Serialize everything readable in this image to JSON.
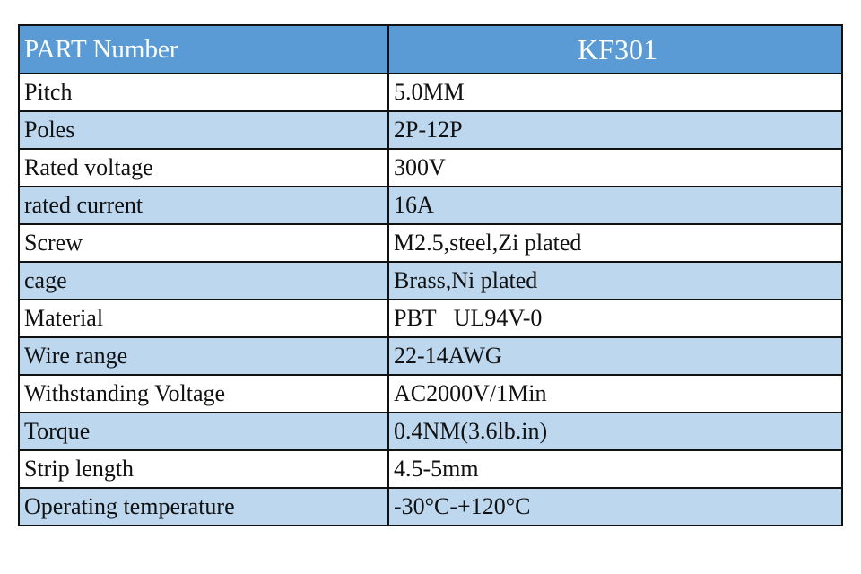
{
  "table": {
    "header": [
      "PART Number",
      "KF301"
    ],
    "rows": [
      [
        "Pitch",
        "5.0MM"
      ],
      [
        "Poles",
        "2P-12P"
      ],
      [
        "Rated voltage",
        "300V"
      ],
      [
        "rated current",
        "16A"
      ],
      [
        "Screw",
        "M2.5,steel,Zi plated"
      ],
      [
        "cage",
        "Brass,Ni plated"
      ],
      [
        "Material",
        "PBT   UL94V-0"
      ],
      [
        "Wire range",
        "22-14AWG"
      ],
      [
        "Withstanding Voltage",
        "AC2000V/1Min"
      ],
      [
        "Torque",
        "0.4NM(3.6lb.in)"
      ],
      [
        "Strip length",
        "4.5-5mm"
      ],
      [
        "Operating temperature",
        "-30°C-+120°C"
      ]
    ]
  }
}
